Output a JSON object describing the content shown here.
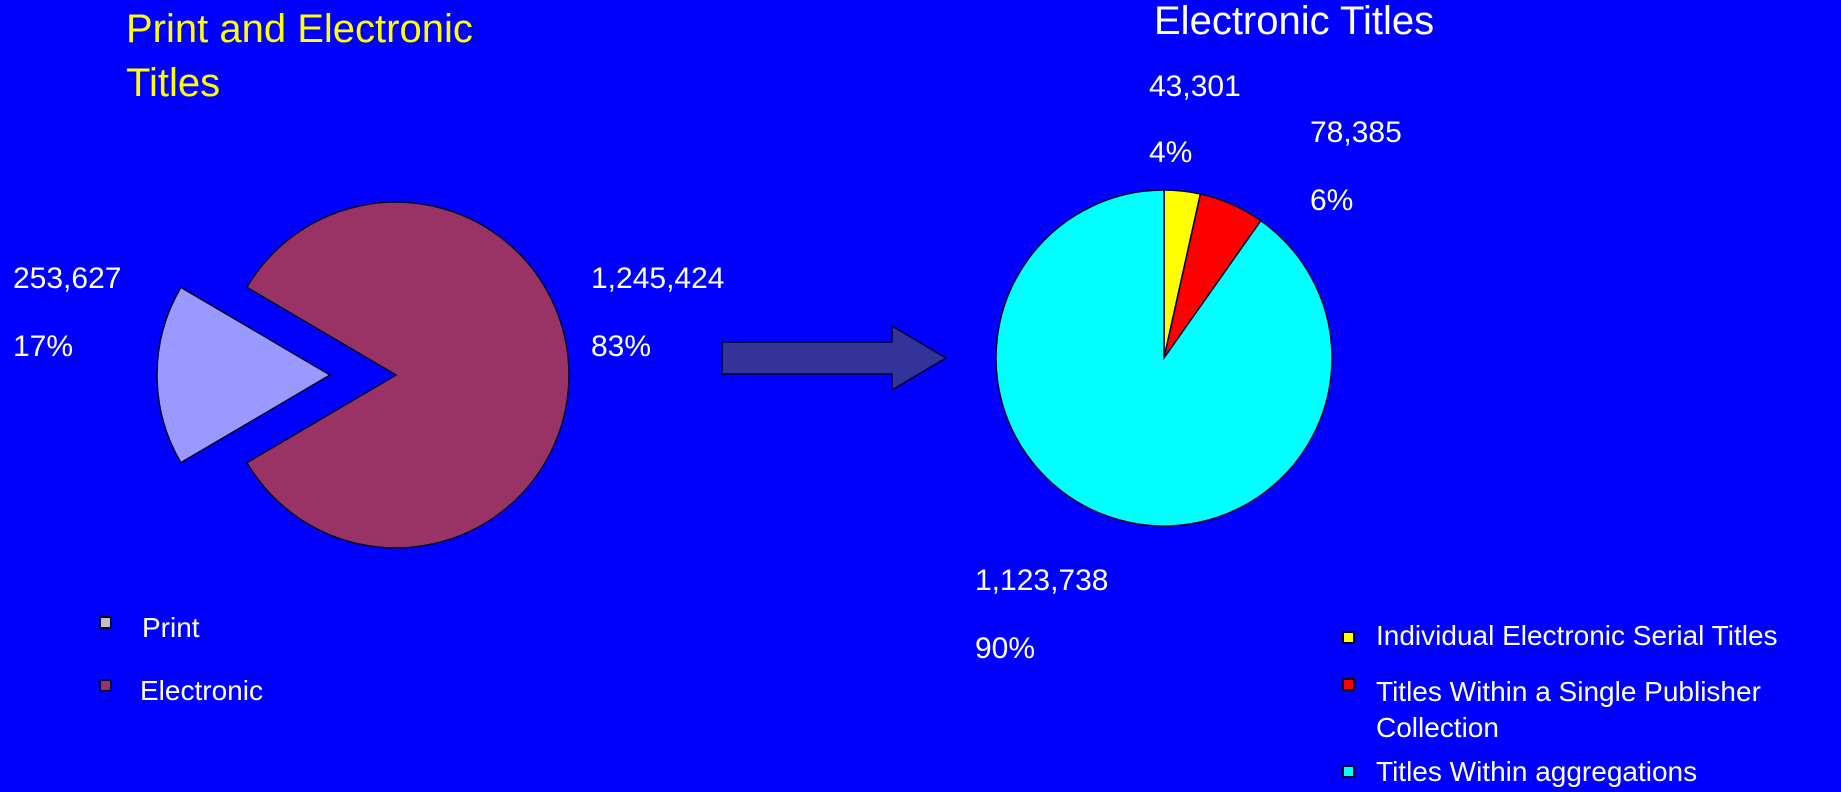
{
  "chart_data": [
    {
      "type": "pie",
      "title": "Print and Electronic Titles",
      "title_lines": [
        "Print and Electronic",
        "Titles"
      ],
      "title_color": "#ffff00",
      "exploded": true,
      "slices": [
        {
          "label": "Print",
          "value": 253627,
          "value_text": "253,627",
          "percent_text": "17%",
          "color": "#9999ff"
        },
        {
          "label": "Electronic",
          "value": 1245424,
          "value_text": "1,245,424",
          "percent_text": "83%",
          "color": "#993366"
        }
      ],
      "legend": [
        "Print",
        "Electronic"
      ]
    },
    {
      "type": "pie",
      "title": "Electronic Titles",
      "title_color": "#ffffff",
      "slices": [
        {
          "label": "Individual Electronic Serial Titles",
          "value": 43301,
          "value_text": "43,301",
          "percent_text": "4%",
          "color": "#ffff00"
        },
        {
          "label": "Titles Within a Single Publisher Collection",
          "value": 78385,
          "value_text": "78,385",
          "percent_text": "6%",
          "color": "#ff0000"
        },
        {
          "label": "Titles Within aggregations",
          "value": 1123738,
          "value_text": "1,123,738",
          "percent_text": "90%",
          "color": "#00ffff"
        }
      ],
      "legend": [
        [
          "Individual Electronic Serial Titles"
        ],
        [
          "Titles Within a Single Publisher",
          "Collection"
        ],
        [
          "Titles Within aggregations"
        ]
      ]
    }
  ],
  "colors": {
    "background": "#0000ff",
    "arrow": "#333399"
  },
  "arrow_icon": "right-arrow"
}
